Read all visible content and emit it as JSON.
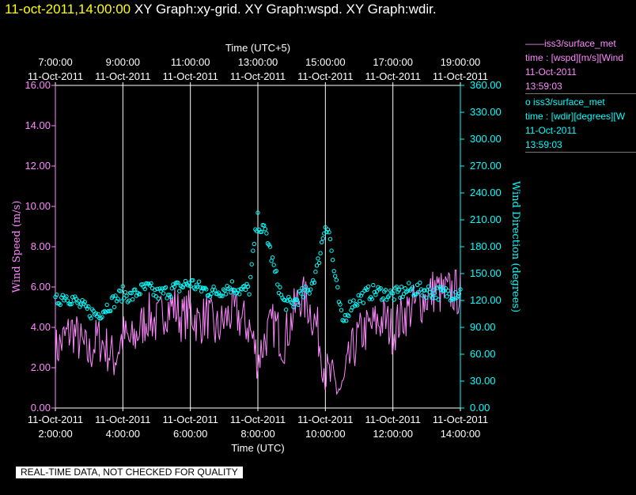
{
  "title": {
    "timestamp": "11-oct-2011,14:00:00",
    "graphs": "XY Graph:xy-grid.  XY Graph:wspd.  XY Graph:wdir."
  },
  "notice": "REAL-TIME DATA, NOT CHECKED FOR QUALITY",
  "legend": [
    {
      "marker": "——",
      "name": "iss3/surface_met",
      "var": "time : [wspd][m/s][Wind",
      "date": "11-Oct-2011",
      "time": "13:59:03",
      "color": "#ff88ff"
    },
    {
      "marker": "o",
      "name": "iss3/surface_met",
      "var": "time : [wdir][degrees][W",
      "date": "11-Oct-2011",
      "time": "13:59:03",
      "color": "#00ffff"
    }
  ],
  "chart_data": {
    "type": "line",
    "top_axis": {
      "title": "Time (UTC+5)",
      "ticks": [
        {
          "time": "7:00:00",
          "date": "11-Oct-2011"
        },
        {
          "time": "9:00:00",
          "date": "11-Oct-2011"
        },
        {
          "time": "11:00:00",
          "date": "11-Oct-2011"
        },
        {
          "time": "13:00:00",
          "date": "11-Oct-2011"
        },
        {
          "time": "15:00:00",
          "date": "11-Oct-2011"
        },
        {
          "time": "17:00:00",
          "date": "11-Oct-2011"
        },
        {
          "time": "19:00:00",
          "date": "11-Oct-2011"
        }
      ]
    },
    "bottom_axis": {
      "title": "Time (UTC)",
      "ticks": [
        {
          "time": "2:00:00",
          "date": "11-Oct-2011"
        },
        {
          "time": "4:00:00",
          "date": "11-Oct-2011"
        },
        {
          "time": "6:00:00",
          "date": "11-Oct-2011"
        },
        {
          "time": "8:00:00",
          "date": "11-Oct-2011"
        },
        {
          "time": "10:00:00",
          "date": "11-Oct-2011"
        },
        {
          "time": "12:00:00",
          "date": "11-Oct-2011"
        },
        {
          "time": "14:00:00",
          "date": "11-Oct-2011"
        }
      ]
    },
    "x_range_utc_hours": [
      2,
      14
    ],
    "left_axis": {
      "label": "Wind Speed (m/s)",
      "range": [
        0,
        16
      ],
      "ticks": [
        "0.00",
        "2.00",
        "4.00",
        "6.00",
        "8.00",
        "10.00",
        "12.00",
        "14.00",
        "16.00"
      ],
      "color": "#ff88ff"
    },
    "right_axis": {
      "label": "Wind Direction (degrees)",
      "range": [
        0,
        360
      ],
      "ticks": [
        "0.00",
        "30.00",
        "60.00",
        "90.00",
        "120.00",
        "150.00",
        "180.00",
        "210.00",
        "240.00",
        "270.00",
        "300.00",
        "330.00",
        "360.00"
      ],
      "color": "#00ffff"
    },
    "grid": "vertical",
    "series": [
      {
        "name": "iss3/surface_met wspd",
        "axis": "left",
        "style": "line",
        "color": "#ff88ff",
        "x": [
          2.0,
          2.25,
          2.5,
          2.75,
          3.0,
          3.25,
          3.5,
          3.75,
          4.0,
          4.25,
          4.5,
          4.75,
          5.0,
          5.25,
          5.5,
          5.75,
          6.0,
          6.25,
          6.5,
          6.75,
          7.0,
          7.25,
          7.5,
          7.75,
          8.0,
          8.25,
          8.5,
          8.75,
          9.0,
          9.25,
          9.5,
          9.75,
          10.0,
          10.25,
          10.5,
          10.75,
          11.0,
          11.25,
          11.5,
          11.75,
          12.0,
          12.25,
          12.5,
          12.75,
          13.0,
          13.25,
          13.5,
          13.75,
          14.0
        ],
        "y": [
          2.8,
          3.4,
          3.9,
          3.2,
          2.6,
          3.5,
          3.0,
          2.4,
          3.6,
          3.2,
          3.9,
          4.6,
          4.2,
          4.9,
          5.1,
          4.4,
          4.8,
          4.2,
          4.6,
          3.8,
          4.3,
          4.8,
          4.4,
          4.0,
          2.4,
          3.6,
          4.2,
          3.2,
          4.4,
          5.6,
          5.1,
          4.0,
          1.8,
          1.2,
          0.8,
          2.6,
          3.6,
          3.9,
          4.2,
          4.4,
          3.8,
          4.5,
          4.9,
          5.2,
          5.5,
          5.9,
          5.6,
          5.8,
          5.7
        ]
      },
      {
        "name": "iss3/surface_met wdir",
        "axis": "right",
        "style": "markers",
        "color": "#00ffff",
        "x": [
          2.0,
          2.25,
          2.5,
          2.75,
          3.0,
          3.25,
          3.5,
          3.75,
          4.0,
          4.25,
          4.5,
          4.75,
          5.0,
          5.25,
          5.5,
          5.75,
          6.0,
          6.25,
          6.5,
          6.75,
          7.0,
          7.25,
          7.5,
          7.75,
          7.9,
          8.0,
          8.1,
          8.25,
          8.5,
          8.75,
          9.0,
          9.25,
          9.5,
          9.75,
          9.9,
          10.0,
          10.1,
          10.25,
          10.5,
          10.75,
          11.0,
          11.25,
          11.5,
          11.75,
          12.0,
          12.25,
          12.5,
          12.75,
          13.0,
          13.25,
          13.5,
          13.75,
          14.0
        ],
        "y": [
          118,
          126,
          122,
          114,
          108,
          104,
          112,
          120,
          128,
          124,
          131,
          134,
          127,
          129,
          133,
          136,
          140,
          134,
          131,
          129,
          133,
          136,
          131,
          133,
          185,
          210,
          200,
          195,
          152,
          118,
          115,
          125,
          130,
          155,
          185,
          205,
          200,
          155,
          95,
          115,
          122,
          128,
          130,
          128,
          126,
          129,
          132,
          132,
          131,
          129,
          128,
          128,
          130
        ]
      }
    ]
  }
}
